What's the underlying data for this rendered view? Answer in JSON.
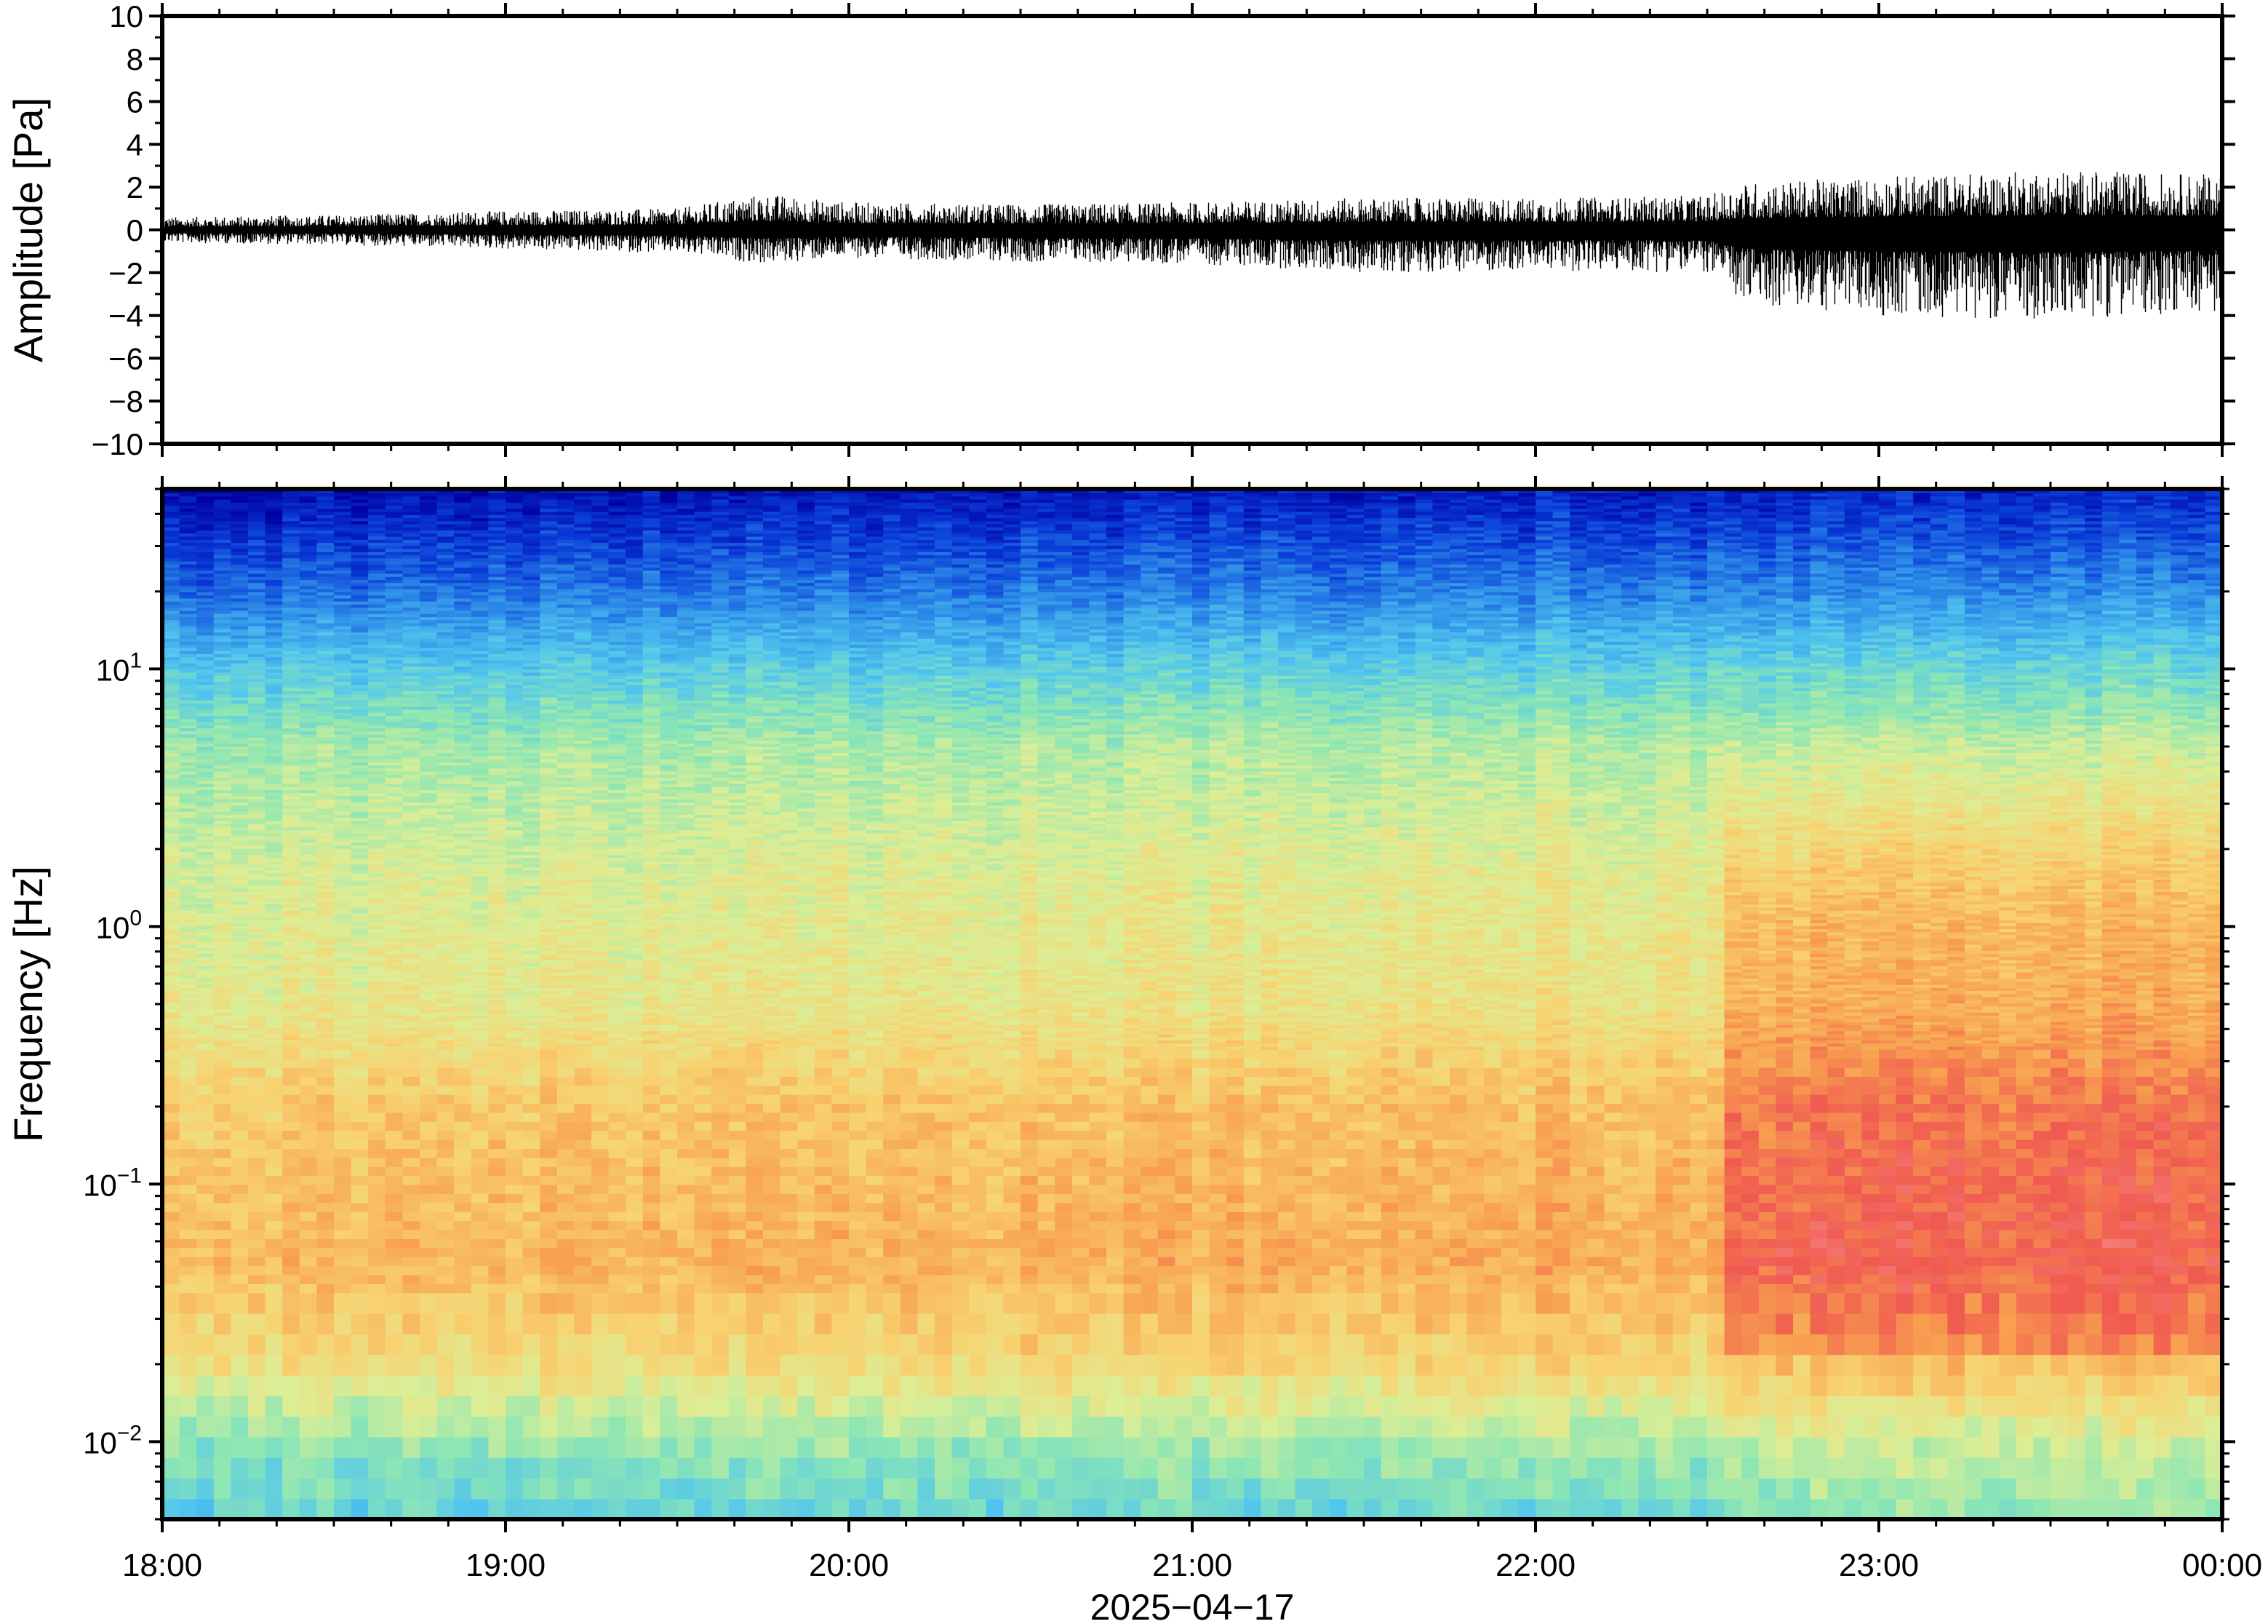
{
  "chart_data": [
    {
      "type": "line",
      "panel": "waveform",
      "ylabel": "Amplitude [Pa]",
      "xlabel": "",
      "ylim": [
        -10,
        10
      ],
      "yticks": [
        10,
        8,
        6,
        4,
        2,
        0,
        -2,
        -4,
        -6,
        -8,
        -10
      ],
      "ytick_labels": [
        "10",
        "8",
        "6",
        "4",
        "2",
        "0",
        "−2",
        "−4",
        "−6",
        "−8",
        "−10"
      ],
      "x_range": [
        "18:00",
        "00:00"
      ],
      "envelope": {
        "time_hours": [
          18.0,
          18.5,
          19.0,
          19.5,
          19.75,
          20.0,
          20.5,
          21.0,
          21.5,
          22.0,
          22.5,
          22.6,
          23.0,
          23.5,
          24.0
        ],
        "max_pa": [
          0.6,
          0.7,
          0.9,
          1.0,
          1.7,
          1.3,
          1.2,
          1.3,
          1.5,
          1.5,
          1.6,
          2.2,
          2.5,
          2.8,
          2.6
        ],
        "min_pa": [
          -0.6,
          -0.7,
          -0.9,
          -1.1,
          -1.6,
          -1.3,
          -1.5,
          -1.6,
          -2.0,
          -1.9,
          -2.0,
          -3.5,
          -4.0,
          -4.2,
          -3.8
        ]
      },
      "color": "#000000"
    },
    {
      "type": "heatmap",
      "panel": "spectrogram",
      "ylabel": "Frequency [Hz]",
      "xlabel": "2025−04−17",
      "yscale": "log",
      "ylim_hz": [
        0.005,
        50
      ],
      "yticks": [
        {
          "mantissa": "10",
          "exponent": "1"
        },
        {
          "mantissa": "10",
          "exponent": "0"
        },
        {
          "mantissa": "10",
          "exponent": "−1"
        },
        {
          "mantissa": "10",
          "exponent": "−2"
        }
      ],
      "x_ticks": [
        "18:00",
        "19:00",
        "20:00",
        "21:00",
        "22:00",
        "23:00",
        "00:00"
      ],
      "colormap": [
        "#0000a0",
        "#0a3cd8",
        "#2e8ee8",
        "#52c6ee",
        "#8ce6b4",
        "#dcee96",
        "#f8d270",
        "#f8a050",
        "#f05a50",
        "#f89696"
      ],
      "description_points": {
        "time_hours": [
          18.0,
          22.5,
          22.55,
          24.0
        ],
        "power_level_at_0.1Hz": [
          0.72,
          0.8,
          0.92,
          0.98
        ],
        "power_level_at_1Hz": [
          0.56,
          0.6,
          0.72,
          0.78
        ]
      }
    }
  ]
}
